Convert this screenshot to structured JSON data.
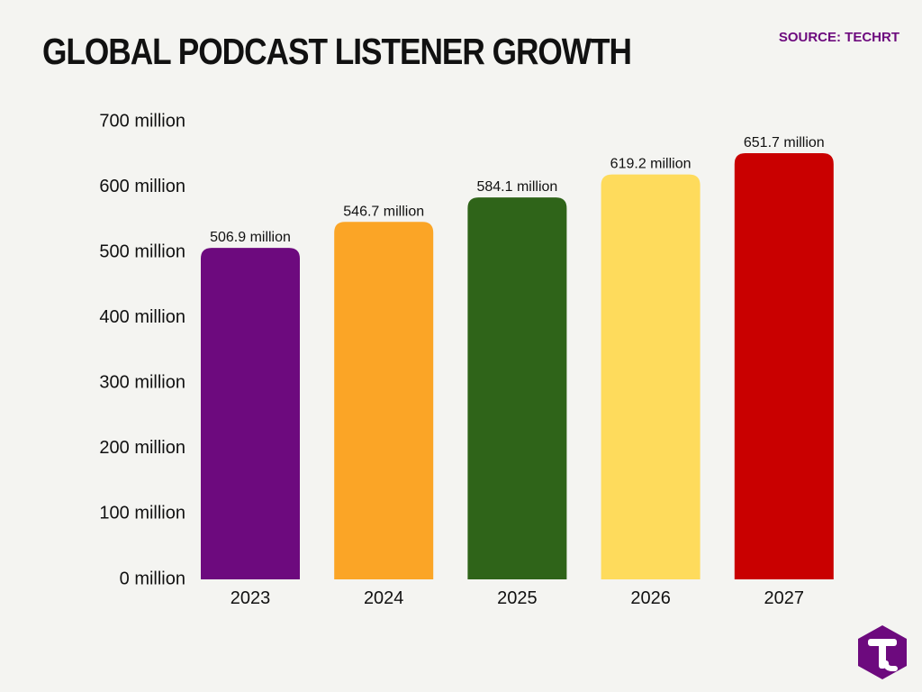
{
  "title": "GLOBAL PODCAST LISTENER GROWTH",
  "source": "SOURCE: TECHRT",
  "colors": {
    "background": "#f4f4f1",
    "title": "#111111",
    "source": "#6d0a7e",
    "logo": "#6d0a7e"
  },
  "logo_icon": "techrt-t-logo-icon",
  "chart_data": {
    "type": "bar",
    "categories": [
      "2023",
      "2024",
      "2025",
      "2026",
      "2027"
    ],
    "values": [
      506.9,
      546.7,
      584.1,
      619.2,
      651.7
    ],
    "data_labels": [
      "506.9 million",
      "546.7 million",
      "584.1 million",
      "619.2 million",
      "651.7 million"
    ],
    "bar_colors": [
      "#6d0a7e",
      "#fba526",
      "#2f6419",
      "#fedb5c",
      "#c90000"
    ],
    "title": "GLOBAL PODCAST LISTENER GROWTH",
    "xlabel": "",
    "ylabel": "",
    "ylim": [
      0,
      700
    ],
    "y_ticks": [
      0,
      100,
      200,
      300,
      400,
      500,
      600,
      700
    ],
    "y_tick_labels": [
      "0 million",
      "100 million",
      "200 million",
      "300 million",
      "400 million",
      "500 million",
      "600 million",
      "700 million"
    ],
    "grid": false,
    "legend": "none"
  }
}
